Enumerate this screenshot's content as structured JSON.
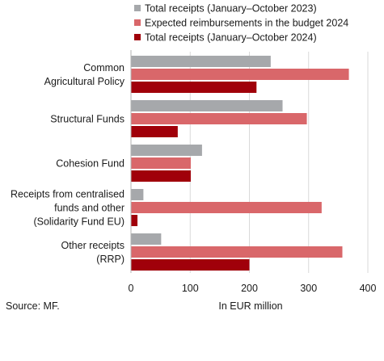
{
  "chart_data": {
    "type": "bar",
    "orientation": "horizontal",
    "categories": [
      [
        "Common",
        "Agricultural Policy"
      ],
      [
        "Structural Funds"
      ],
      [
        "Cohesion Fund"
      ],
      [
        "Receipts from centralised",
        "funds and other",
        "(Solidarity Fund EU)"
      ],
      [
        "Other receipts",
        "(RRP)"
      ]
    ],
    "series": [
      {
        "name": "Total receipts (January–October 2023)",
        "color": "#a6a8ab",
        "values": [
          236,
          256,
          120,
          21,
          51
        ]
      },
      {
        "name": "Expected reimbursements in the budget 2024",
        "color": "#d9676a",
        "values": [
          368,
          297,
          101,
          322,
          357
        ]
      },
      {
        "name": "Total receipts (January–October 2024)",
        "color": "#a0000a",
        "values": [
          212,
          79,
          101,
          11,
          200
        ]
      }
    ],
    "xlim": [
      0,
      400
    ],
    "ticks": [
      0,
      100,
      200,
      300,
      400
    ],
    "tick_labels": [
      "0",
      "100",
      "200",
      "300",
      "400"
    ],
    "xlabel": "In EUR million",
    "grid": true,
    "legend_position": "top"
  },
  "footer": {
    "source": "Source: MF."
  }
}
